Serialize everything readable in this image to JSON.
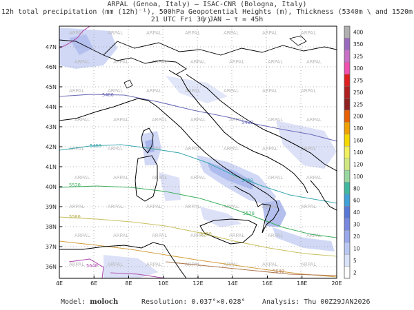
{
  "header": {
    "line1": "ARPAL (Genoa, Italy)  —  ISAC-CNR (Bologna, Italy)",
    "line2": "12h total precipitation (mm (12h)⁻¹), 500hPa Geopotential Heights (m), Thickness (5340m \\ and 1520m /)",
    "line3": "21 UTC Fri 30 JAN  —  τ = 45h"
  },
  "map": {
    "lat_labels": [
      "47N",
      "46N",
      "45N",
      "44N",
      "43N",
      "42N",
      "41N",
      "40N",
      "39N",
      "38N",
      "37N",
      "36N"
    ],
    "lon_labels": [
      "4E",
      "6E",
      "8E",
      "10E",
      "12E",
      "14E",
      "16E",
      "18E",
      "20E"
    ],
    "watermark": "ARPAL",
    "contour_labels": [
      "5400",
      "5400",
      "5460",
      "5460",
      "5520",
      "5520",
      "5580",
      "5580",
      "5640",
      "5640"
    ]
  },
  "colorbar": {
    "labels": [
      "400",
      "350",
      "325",
      "300",
      "275",
      "250",
      "225",
      "200",
      "180",
      "160",
      "140",
      "120",
      "100",
      "80",
      "60",
      "40",
      "30",
      "20",
      "10",
      "5",
      "2"
    ],
    "colors": [
      "#b0b0b0",
      "#9a6abf",
      "#c86fc6",
      "#f050b0",
      "#e02020",
      "#b02020",
      "#902020",
      "#e86000",
      "#f0a000",
      "#f6d800",
      "#f0f060",
      "#d0e880",
      "#98d8a0",
      "#40b8a0",
      "#40a0d8",
      "#5878d8",
      "#7888e0",
      "#98a8ea",
      "#b8c8f2",
      "#d8e2f8",
      "#ffffff"
    ]
  },
  "footer": {
    "model_label": "Model:",
    "model_name": "moloch",
    "resolution": "Resolution: 0.037°×0.028°",
    "analysis": "Analysis: Thu 00Z29JAN2026"
  }
}
